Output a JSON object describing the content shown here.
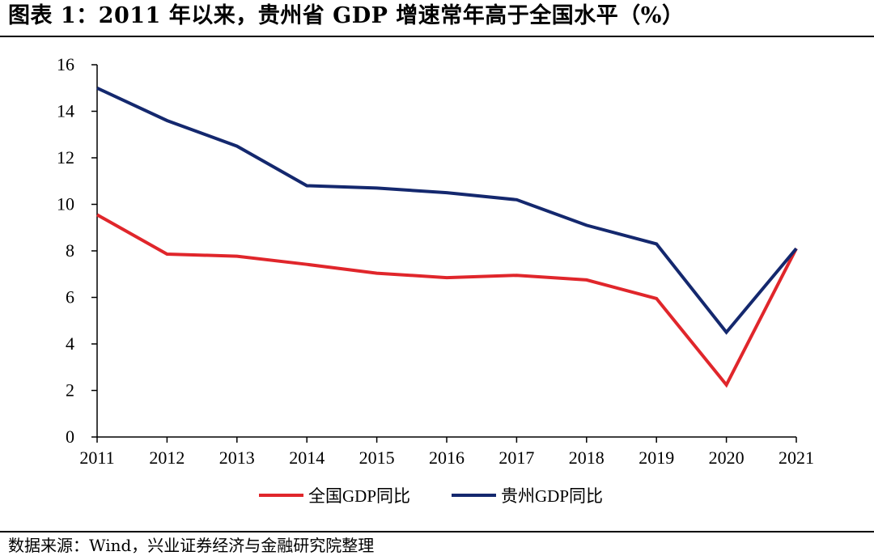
{
  "figure": {
    "title": "图表 1：2011 年以来，贵州省 GDP 增速常年高于全国水平（%）",
    "source": "数据来源：Wind，兴业证券经济与金融研究院整理"
  },
  "chart_data": {
    "type": "line",
    "title": "图表 1：2011 年以来，贵州省 GDP 增速常年高于全国水平（%）",
    "xlabel": "",
    "ylabel": "",
    "x": [
      "2011",
      "2012",
      "2013",
      "2014",
      "2015",
      "2016",
      "2017",
      "2018",
      "2019",
      "2020",
      "2021"
    ],
    "ylim": [
      0,
      16
    ],
    "yticks": [
      0,
      2,
      4,
      6,
      8,
      10,
      12,
      14,
      16
    ],
    "grid": false,
    "legend_position": "bottom",
    "series": [
      {
        "name": "全国GDP同比",
        "color": "#e0262b",
        "values": [
          9.55,
          7.86,
          7.77,
          7.42,
          7.04,
          6.85,
          6.95,
          6.75,
          5.95,
          2.24,
          8.1
        ]
      },
      {
        "name": "贵州GDP同比",
        "color": "#14286e",
        "values": [
          15.0,
          13.6,
          12.5,
          10.8,
          10.7,
          10.5,
          10.2,
          9.1,
          8.3,
          4.5,
          8.1
        ]
      }
    ]
  }
}
